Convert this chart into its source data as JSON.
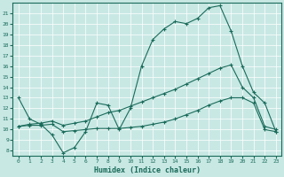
{
  "xlabel": "Humidex (Indice chaleur)",
  "bg_color": "#c8e8e4",
  "line_color": "#1a6b5a",
  "xlim": [
    -0.5,
    23.5
  ],
  "ylim": [
    7.5,
    22.0
  ],
  "x_ticks": [
    0,
    1,
    2,
    3,
    4,
    5,
    6,
    7,
    8,
    9,
    10,
    11,
    12,
    13,
    14,
    15,
    16,
    17,
    18,
    19,
    20,
    21,
    22,
    23
  ],
  "y_ticks": [
    8,
    9,
    10,
    11,
    12,
    13,
    14,
    15,
    16,
    17,
    18,
    19,
    20,
    21
  ],
  "line1_y": [
    13,
    11,
    10.5,
    9.5,
    7.8,
    8.3,
    9.8,
    12.5,
    12.3,
    10.0,
    12.0,
    16.0,
    18.5,
    19.5,
    20.2,
    20.0,
    20.5,
    21.5,
    21.7,
    19.3,
    16.0,
    13.5,
    12.5,
    9.8
  ],
  "line2_y": [
    10.3,
    10.5,
    10.6,
    10.8,
    10.4,
    10.6,
    10.8,
    11.2,
    11.6,
    11.8,
    12.2,
    12.6,
    13.0,
    13.4,
    13.8,
    14.3,
    14.8,
    15.3,
    15.8,
    16.1,
    14.0,
    13.0,
    10.3,
    10.0
  ],
  "line3_y": [
    10.3,
    10.4,
    10.4,
    10.5,
    9.8,
    9.9,
    10.0,
    10.1,
    10.1,
    10.1,
    10.2,
    10.3,
    10.5,
    10.7,
    11.0,
    11.4,
    11.8,
    12.3,
    12.7,
    13.0,
    13.0,
    12.5,
    10.0,
    9.8
  ]
}
